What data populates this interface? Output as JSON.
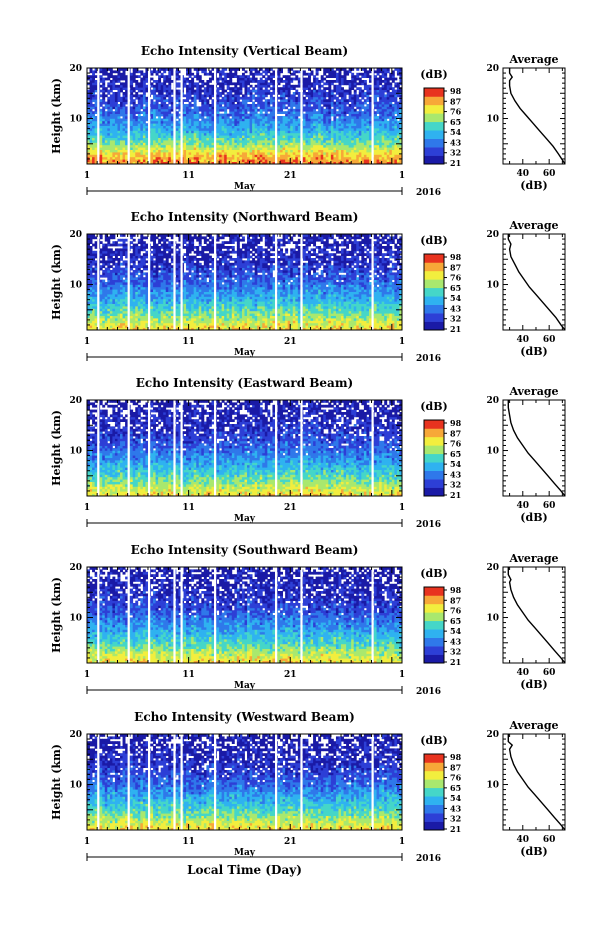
{
  "x_axis": {
    "tick_labels": [
      "1",
      "11",
      "21",
      "1"
    ],
    "month_label": "May",
    "year_label": "2016",
    "label": "Local Time (Day)"
  },
  "y_axis": {
    "label": "Height (km)",
    "tick_labels": [
      "20",
      "10"
    ]
  },
  "colorbar": {
    "unit_label": "(dB)",
    "tick_labels": [
      "98",
      "87",
      "76",
      "65",
      "54",
      "43",
      "32",
      "21"
    ]
  },
  "average": {
    "title": "Average",
    "xlabel": "(dB)",
    "x_tick_labels": [
      "40",
      "60"
    ],
    "y_tick_labels": [
      "20",
      "10"
    ]
  },
  "chart_data": [
    {
      "type": "heatmap",
      "title": "Echo Intensity (Vertical Beam)",
      "xlabel": "",
      "ylabel": "Height (km)",
      "x_range_days": [
        "2016-05-01",
        "2016-06-01"
      ],
      "ylim_km": [
        1,
        20
      ],
      "colorbar_label": "(dB)",
      "color_range_db": [
        21,
        98
      ],
      "strong_echo_below_km": 3.5,
      "approx_profile": [
        [
          1,
          90
        ],
        [
          3,
          80
        ],
        [
          5,
          65
        ],
        [
          8,
          50
        ],
        [
          11,
          40
        ],
        [
          14,
          33
        ],
        [
          17,
          28
        ],
        [
          20,
          26
        ]
      ]
    },
    {
      "type": "heatmap",
      "title": "Echo Intensity (Northward Beam)",
      "xlabel": "",
      "ylabel": "Height (km)",
      "x_range_days": [
        "2016-05-01",
        "2016-06-01"
      ],
      "ylim_km": [
        1,
        20
      ],
      "colorbar_label": "(dB)",
      "color_range_db": [
        21,
        98
      ],
      "approx_profile": [
        [
          1,
          80
        ],
        [
          3,
          70
        ],
        [
          5,
          60
        ],
        [
          8,
          48
        ],
        [
          11,
          38
        ],
        [
          14,
          31
        ],
        [
          17,
          27
        ],
        [
          20,
          25
        ]
      ]
    },
    {
      "type": "heatmap",
      "title": "Echo Intensity (Eastward Beam)",
      "xlabel": "",
      "ylabel": "Height (km)",
      "x_range_days": [
        "2016-05-01",
        "2016-06-01"
      ],
      "ylim_km": [
        1,
        20
      ],
      "colorbar_label": "(dB)",
      "color_range_db": [
        21,
        98
      ],
      "approx_profile": [
        [
          1,
          80
        ],
        [
          3,
          70
        ],
        [
          5,
          60
        ],
        [
          8,
          48
        ],
        [
          11,
          38
        ],
        [
          14,
          31
        ],
        [
          17,
          27
        ],
        [
          20,
          25
        ]
      ]
    },
    {
      "type": "heatmap",
      "title": "Echo Intensity (Southward Beam)",
      "xlabel": "",
      "ylabel": "Height (km)",
      "x_range_days": [
        "2016-05-01",
        "2016-06-01"
      ],
      "ylim_km": [
        1,
        20
      ],
      "colorbar_label": "(dB)",
      "color_range_db": [
        21,
        98
      ],
      "approx_profile": [
        [
          1,
          80
        ],
        [
          3,
          70
        ],
        [
          5,
          60
        ],
        [
          8,
          48
        ],
        [
          11,
          38
        ],
        [
          14,
          31
        ],
        [
          17,
          27
        ],
        [
          20,
          25
        ]
      ]
    },
    {
      "type": "heatmap",
      "title": "Echo Intensity (Westward Beam)",
      "xlabel": "Local Time (Day)",
      "ylabel": "Height (km)",
      "x_range_days": [
        "2016-05-01",
        "2016-06-01"
      ],
      "ylim_km": [
        1,
        20
      ],
      "colorbar_label": "(dB)",
      "color_range_db": [
        21,
        98
      ],
      "approx_profile": [
        [
          1,
          80
        ],
        [
          3,
          70
        ],
        [
          5,
          60
        ],
        [
          8,
          48
        ],
        [
          11,
          38
        ],
        [
          14,
          31
        ],
        [
          17,
          27
        ],
        [
          20,
          25
        ]
      ]
    }
  ],
  "average_profiles": [
    {
      "type": "line",
      "title": "Average",
      "xlabel": "(dB)",
      "xlim": [
        25,
        72
      ],
      "ylim": [
        1,
        20
      ],
      "points": [
        [
          72,
          1
        ],
        [
          70,
          1.8
        ],
        [
          67,
          3
        ],
        [
          63,
          4.5
        ],
        [
          58,
          6
        ],
        [
          53,
          7.5
        ],
        [
          48,
          9
        ],
        [
          43,
          10.5
        ],
        [
          38,
          12
        ],
        [
          34,
          13.5
        ],
        [
          31,
          15
        ],
        [
          30,
          16.5
        ],
        [
          30,
          17.5
        ],
        [
          32,
          18.2
        ],
        [
          30,
          19
        ],
        [
          30,
          20
        ]
      ]
    },
    {
      "type": "line",
      "title": "Average",
      "xlabel": "(dB)",
      "xlim": [
        25,
        72
      ],
      "ylim": [
        1,
        20
      ],
      "points": [
        [
          72,
          1
        ],
        [
          69,
          2
        ],
        [
          65,
          3.5
        ],
        [
          60,
          5
        ],
        [
          55,
          6.5
        ],
        [
          50,
          8
        ],
        [
          45,
          9.5
        ],
        [
          41,
          11
        ],
        [
          37,
          12.5
        ],
        [
          34,
          14
        ],
        [
          31,
          15.5
        ],
        [
          30,
          17
        ],
        [
          31,
          18
        ],
        [
          29,
          19
        ],
        [
          29,
          20
        ]
      ]
    },
    {
      "type": "line",
      "title": "Average",
      "xlabel": "(dB)",
      "xlim": [
        25,
        72
      ],
      "ylim": [
        1,
        20
      ],
      "points": [
        [
          72,
          1
        ],
        [
          69,
          2
        ],
        [
          64,
          3.5
        ],
        [
          59,
          5
        ],
        [
          54,
          6.5
        ],
        [
          49,
          8
        ],
        [
          44,
          9.5
        ],
        [
          40,
          11
        ],
        [
          36,
          12.5
        ],
        [
          33,
          14
        ],
        [
          31,
          15.5
        ],
        [
          30,
          17
        ],
        [
          29,
          18.5
        ],
        [
          29,
          20
        ]
      ]
    },
    {
      "type": "line",
      "title": "Average",
      "xlabel": "(dB)",
      "xlim": [
        25,
        72
      ],
      "ylim": [
        1,
        20
      ],
      "points": [
        [
          72,
          1
        ],
        [
          69,
          2
        ],
        [
          64,
          3.5
        ],
        [
          59,
          5
        ],
        [
          54,
          6.5
        ],
        [
          49,
          8
        ],
        [
          44,
          9.5
        ],
        [
          40,
          11
        ],
        [
          36,
          12.5
        ],
        [
          33,
          14
        ],
        [
          31,
          15.5
        ],
        [
          30,
          17
        ],
        [
          31,
          17.5
        ],
        [
          29,
          18.5
        ],
        [
          29,
          20
        ]
      ]
    },
    {
      "type": "line",
      "title": "Average",
      "xlabel": "(dB)",
      "xlim": [
        25,
        72
      ],
      "ylim": [
        1,
        20
      ],
      "points": [
        [
          72,
          1
        ],
        [
          69,
          2
        ],
        [
          64,
          3.5
        ],
        [
          59,
          5
        ],
        [
          54,
          6.5
        ],
        [
          49,
          8
        ],
        [
          44,
          9.5
        ],
        [
          40,
          11
        ],
        [
          36,
          12.5
        ],
        [
          33,
          14
        ],
        [
          31,
          15.5
        ],
        [
          30,
          17
        ],
        [
          32,
          17.8
        ],
        [
          29,
          18.5
        ],
        [
          29,
          20
        ]
      ]
    }
  ],
  "data_gaps_day": [
    2.0,
    5.0,
    7.0,
    9.5,
    10.2,
    13.5,
    19.5,
    22.0,
    29.0
  ],
  "colors": {
    "colormap": [
      "#1a1aa6",
      "#2d3fd6",
      "#2f78ea",
      "#2fb2f0",
      "#45d6c8",
      "#a9e86e",
      "#f2ee3e",
      "#f7a838",
      "#e8331f"
    ],
    "frame": "#000000",
    "background": "#ffffff"
  }
}
